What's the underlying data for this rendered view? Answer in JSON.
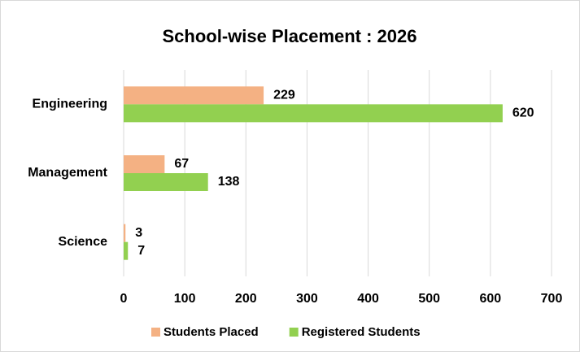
{
  "chart_data": {
    "type": "bar",
    "orientation": "horizontal",
    "title": "School-wise Placement : 2026",
    "categories": [
      "Engineering",
      "Management",
      "Science"
    ],
    "series": [
      {
        "name": "Students Placed",
        "color": "#f4b183",
        "values": [
          229,
          67,
          3
        ]
      },
      {
        "name": "Registered Students",
        "color": "#92d050",
        "values": [
          620,
          138,
          7
        ]
      }
    ],
    "xlim": [
      0,
      700
    ],
    "xticks": [
      0,
      100,
      200,
      300,
      400,
      500,
      600,
      700
    ],
    "grid": true,
    "legend": "bottom"
  }
}
